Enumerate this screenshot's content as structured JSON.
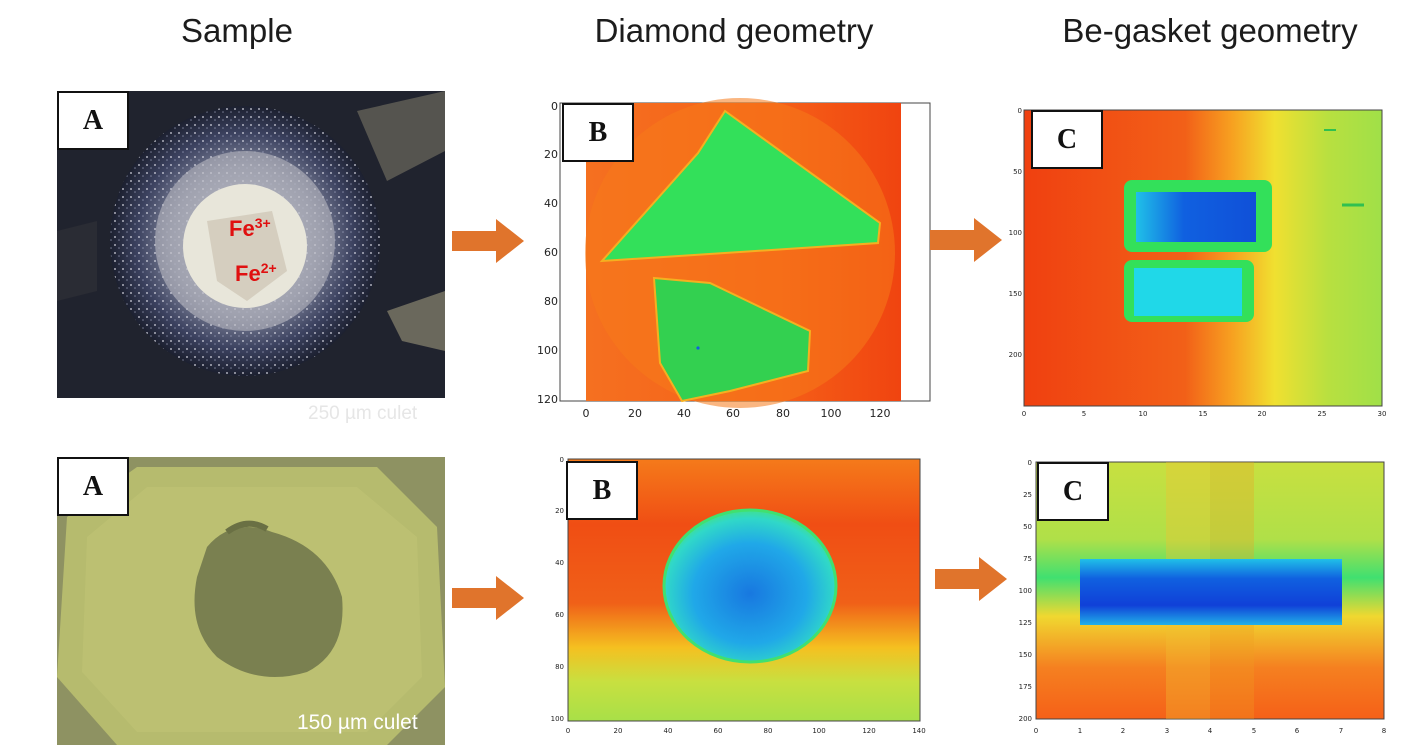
{
  "headers": {
    "sample": "Sample",
    "diamond": "Diamond geometry",
    "gasket": "Be-gasket geometry"
  },
  "panel_labels": {
    "a": "A",
    "b": "B",
    "c": "C"
  },
  "row1": {
    "fe3": "Fe",
    "fe3_sup": "3+",
    "fe2": "Fe",
    "fe2_sup": "2+",
    "culet": "250 µm culet"
  },
  "row2": {
    "culet": "150 µm culet"
  },
  "colors": {
    "arrow": "#e0742c",
    "map_red": "#f04410",
    "map_orange": "#f57a1a",
    "map_green": "#33e05a",
    "map_blue": "#1060e0",
    "map_cyan": "#20d8e8"
  },
  "chart_data": [
    {
      "type": "heatmap",
      "id": "row1-diamond",
      "x_ticks": [
        "0",
        "20",
        "40",
        "60",
        "80",
        "100",
        "120"
      ],
      "y_ticks": [
        "0",
        "20",
        "40",
        "60",
        "80",
        "100",
        "120"
      ],
      "xlim": [
        0,
        128
      ],
      "ylim": [
        0,
        121
      ]
    },
    {
      "type": "heatmap",
      "id": "row1-gasket",
      "x_ticks": [
        "0",
        "5",
        "10",
        "15",
        "20",
        "25",
        "30"
      ],
      "y_ticks": [
        "0",
        "50",
        "100",
        "150",
        "200"
      ],
      "xlim": [
        0,
        30
      ],
      "ylim": [
        0,
        240
      ]
    },
    {
      "type": "heatmap",
      "id": "row2-diamond",
      "x_ticks": [
        "0",
        "20",
        "40",
        "60",
        "80",
        "100",
        "120",
        "140"
      ],
      "y_ticks": [
        "0",
        "20",
        "40",
        "60",
        "80",
        "100"
      ],
      "xlim": [
        0,
        140
      ],
      "ylim": [
        0,
        101
      ]
    },
    {
      "type": "heatmap",
      "id": "row2-gasket",
      "x_ticks": [
        "0",
        "1",
        "2",
        "3",
        "4",
        "5",
        "6",
        "7",
        "8"
      ],
      "y_ticks": [
        "0",
        "25",
        "50",
        "75",
        "100",
        "125",
        "150",
        "175",
        "200"
      ],
      "xlim": [
        0,
        8
      ],
      "ylim": [
        0,
        201
      ]
    }
  ]
}
